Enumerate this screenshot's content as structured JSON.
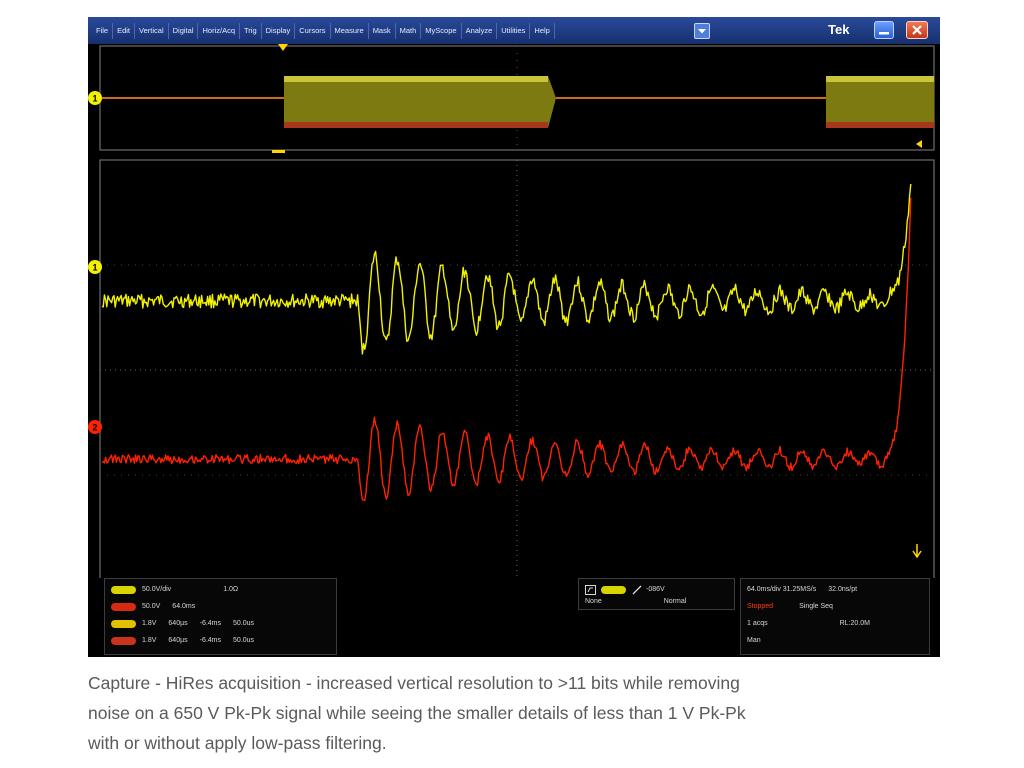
{
  "menu": {
    "items": [
      "File",
      "Edit",
      "Vertical",
      "Digital",
      "Horiz/Acq",
      "Trig",
      "Display",
      "Cursors",
      "Measure",
      "Mask",
      "Math",
      "MyScope",
      "Analyze",
      "Utilities",
      "Help"
    ],
    "brand": "Tek"
  },
  "channels": {
    "ch1": {
      "marker": "1",
      "color": "#f2f200",
      "scale": "50.0V/div",
      "ref": "1.0Ω"
    },
    "ch2": {
      "marker": "2",
      "color": "#ff2200",
      "scale": "50.0V",
      "position": "64.0ms"
    },
    "ref_rows": [
      {
        "level": "1.8V",
        "time": "640µs",
        "offset": "-6.4ms",
        "span": "50.0us"
      },
      {
        "level": "1.8V",
        "time": "640µs",
        "offset": "-6.4ms",
        "span": "50.0us"
      }
    ]
  },
  "trigger": {
    "level": "-086V",
    "mode": "None",
    "type": "Normal"
  },
  "acquisition": {
    "timebase": "64.0ms/div 31.25MS/s",
    "resolution": "32.0ns/pt",
    "state": "Stopped",
    "sequence": "Single Seq",
    "acqs": "1 acqs",
    "record": "RL:20.0M",
    "mode": "Man"
  },
  "caption": [
    "Capture - HiRes acquisition - increased vertical resolution to >11 bits while removing",
    "noise on a 650 V Pk-Pk signal while seeing the smaller details of less than 1 V Pk-Pk",
    "with or without apply low-pass filtering."
  ]
}
